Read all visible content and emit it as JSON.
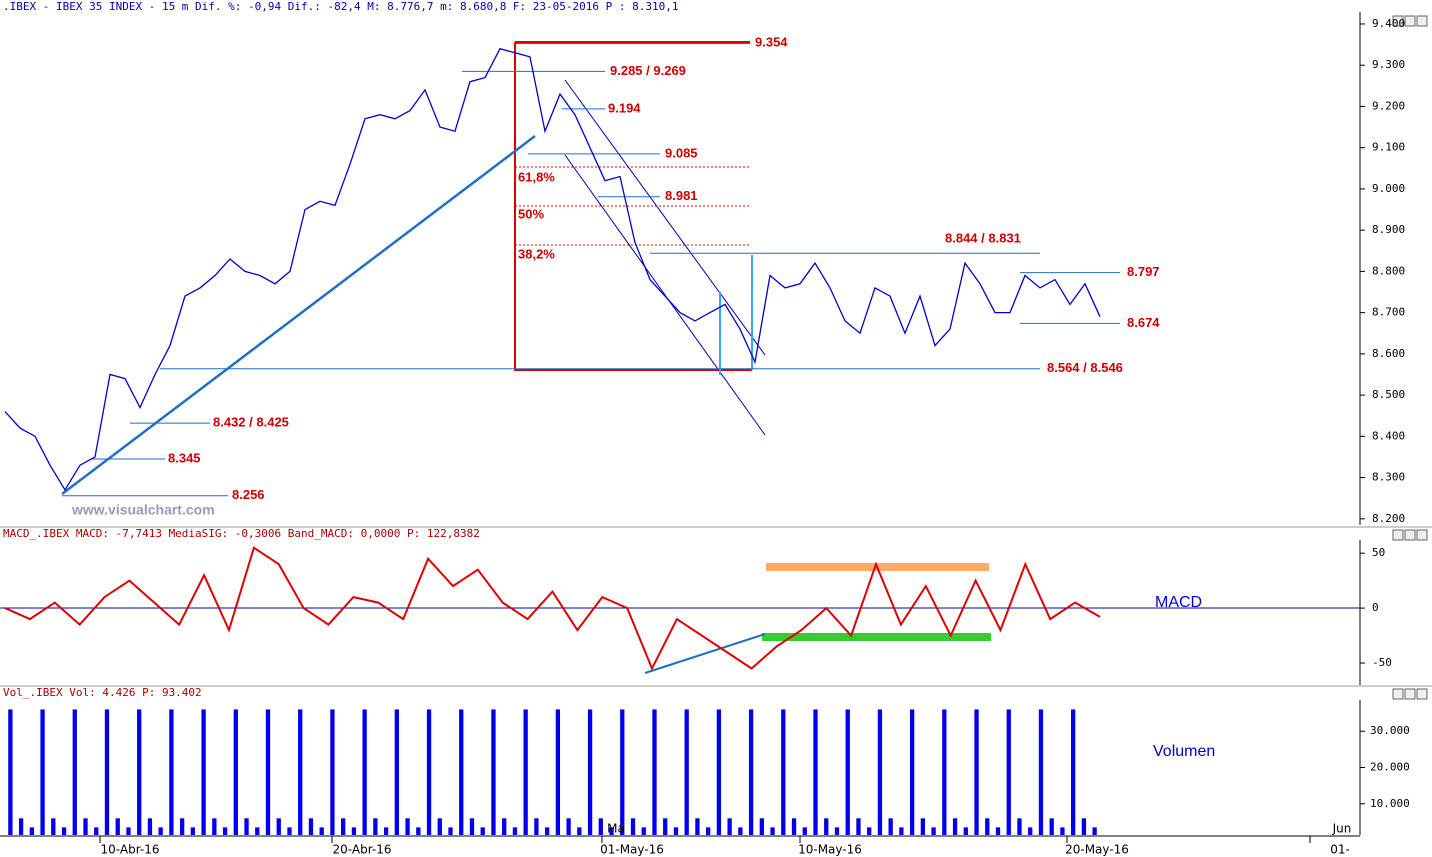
{
  "chart_data": {
    "type": "line",
    "title": ".IBEX - IBEX 35 INDEX -  15 m Dif. %: -0,94 Dif.: -82,4 M: 8.776,7 m: 8.680,8 F: 23-05-2016 P : 8.310,1",
    "watermark": "www.visualchart.com",
    "series": [
      {
        "color": "#0000cc",
        "values": [
          8460,
          8420,
          8400,
          8330,
          8270,
          8330,
          8350,
          8550,
          8540,
          8470,
          8550,
          8620,
          8740,
          8760,
          8790,
          8830,
          8800,
          8790,
          8770,
          8800,
          8950,
          8970,
          8960,
          9060,
          9170,
          9180,
          9170,
          9190,
          9240,
          9150,
          9140,
          9260,
          9270,
          9340,
          9330,
          9320,
          9140,
          9230,
          9180,
          9100,
          9020,
          9030,
          8870,
          8780,
          8740,
          8700,
          8680,
          8700,
          8720,
          8660,
          8580,
          8790,
          8760,
          8770,
          8820,
          8760,
          8680,
          8650,
          8760,
          8740,
          8650,
          8740,
          8620,
          8660,
          8820,
          8770,
          8700,
          8700,
          8790,
          8760,
          8780,
          8720,
          8770,
          8690
        ]
      }
    ],
    "ylim": [
      8185,
      9429
    ],
    "yticks": [
      {
        "value": 8200,
        "label": "8.200"
      },
      {
        "value": 8300,
        "label": "8.300"
      },
      {
        "value": 8400,
        "label": "8.400"
      },
      {
        "value": 8500,
        "label": "8.500"
      },
      {
        "value": 8600,
        "label": "8.600"
      },
      {
        "value": 8700,
        "label": "8.700"
      },
      {
        "value": 8800,
        "label": "8.800"
      },
      {
        "value": 8900,
        "label": "8.900"
      },
      {
        "value": 9000,
        "label": "9.000"
      },
      {
        "value": 9100,
        "label": "9.100"
      },
      {
        "value": 9200,
        "label": "9.200"
      },
      {
        "value": 9300,
        "label": "9.300"
      },
      {
        "value": 9400,
        "label": "9.400"
      }
    ],
    "levels": [
      {
        "value": 9354,
        "label": "9.354"
      },
      {
        "value": 9285,
        "label": "9.285 / 9.269"
      },
      {
        "value": 9194,
        "label": "9.194"
      },
      {
        "value": 9085,
        "label": "9.085"
      },
      {
        "value": 8981,
        "label": "8.981"
      },
      {
        "value": 8844,
        "label": "8.844 / 8.831"
      },
      {
        "value": 8797,
        "label": "8.797"
      },
      {
        "value": 8674,
        "label": "8.674"
      },
      {
        "value": 8564,
        "label": "8.564 / 8.546"
      },
      {
        "value": 8432,
        "label": "8.432 / 8.425"
      },
      {
        "value": 8345,
        "label": "8.345"
      },
      {
        "value": 8256,
        "label": "8.256"
      }
    ],
    "fib_labels": [
      "61,8%",
      "50%",
      "38,2%"
    ],
    "xtick_labels": [
      "10-Abr-16",
      "20-Abr-16",
      "01-May-16",
      "10-May-16",
      "20-May-16",
      "01-"
    ],
    "xtick_top_labels": [
      "Ma",
      "Jun"
    ],
    "macd": {
      "header": "MACD_.IBEX MACD: -7,7413 MediaSIG: -0,3006 Band_MACD: 0,0000 P: 122,8382",
      "label": "MACD",
      "color": "#dd0000",
      "values": [
        0,
        -10,
        5,
        -15,
        10,
        25,
        5,
        -15,
        30,
        -20,
        55,
        40,
        0,
        -15,
        10,
        5,
        -10,
        45,
        20,
        35,
        5,
        -10,
        15,
        -20,
        10,
        0,
        -55,
        -10,
        -25,
        -40,
        -55,
        -35,
        -20,
        0,
        -25,
        40,
        -15,
        20,
        -25,
        25,
        -20,
        40,
        -10,
        5,
        -8
      ],
      "ylim": [
        -70,
        62
      ],
      "yticks": [
        -50,
        0,
        50
      ]
    },
    "volume": {
      "header": "Vol_.IBEX Vol: 4.426 P: 93.402",
      "label": "Volumen",
      "color": "#0000ee",
      "values": [
        36000,
        6000,
        3500,
        36000,
        6000,
        3500,
        36000,
        6000,
        3500,
        36000,
        6000,
        3500,
        36000,
        6000,
        3500,
        36000,
        6000,
        3500,
        36000,
        6000,
        3500,
        36000,
        6000,
        3500,
        36000,
        6000,
        3500,
        36000,
        6000,
        3500,
        36000,
        6000,
        3500,
        36000,
        6000,
        3500,
        36000,
        6000,
        3500,
        36000,
        6000,
        3500,
        36000,
        6000,
        3500,
        36000,
        6000,
        3500,
        36000,
        6000,
        3500,
        36000,
        6000,
        3500,
        36000,
        6000,
        3500,
        36000,
        6000,
        3500,
        36000,
        6000,
        3500,
        36000,
        6000,
        3500,
        36000,
        6000,
        3500,
        36000,
        6000,
        3500,
        36000,
        6000,
        3500,
        36000,
        6000,
        3500,
        36000,
        6000,
        3500,
        36000,
        6000,
        3500,
        36000,
        6000,
        3500,
        36000,
        6000,
        3500,
        36000,
        6000,
        3500,
        36000,
        6000,
        3500,
        36000,
        6000,
        3500,
        36000,
        6000,
        3500
      ],
      "ylim": [
        1400,
        38600
      ],
      "yticks": [
        {
          "value": 10000,
          "label": "10.000"
        },
        {
          "value": 20000,
          "label": "20.000"
        },
        {
          "value": 30000,
          "label": "30.000"
        }
      ]
    }
  }
}
